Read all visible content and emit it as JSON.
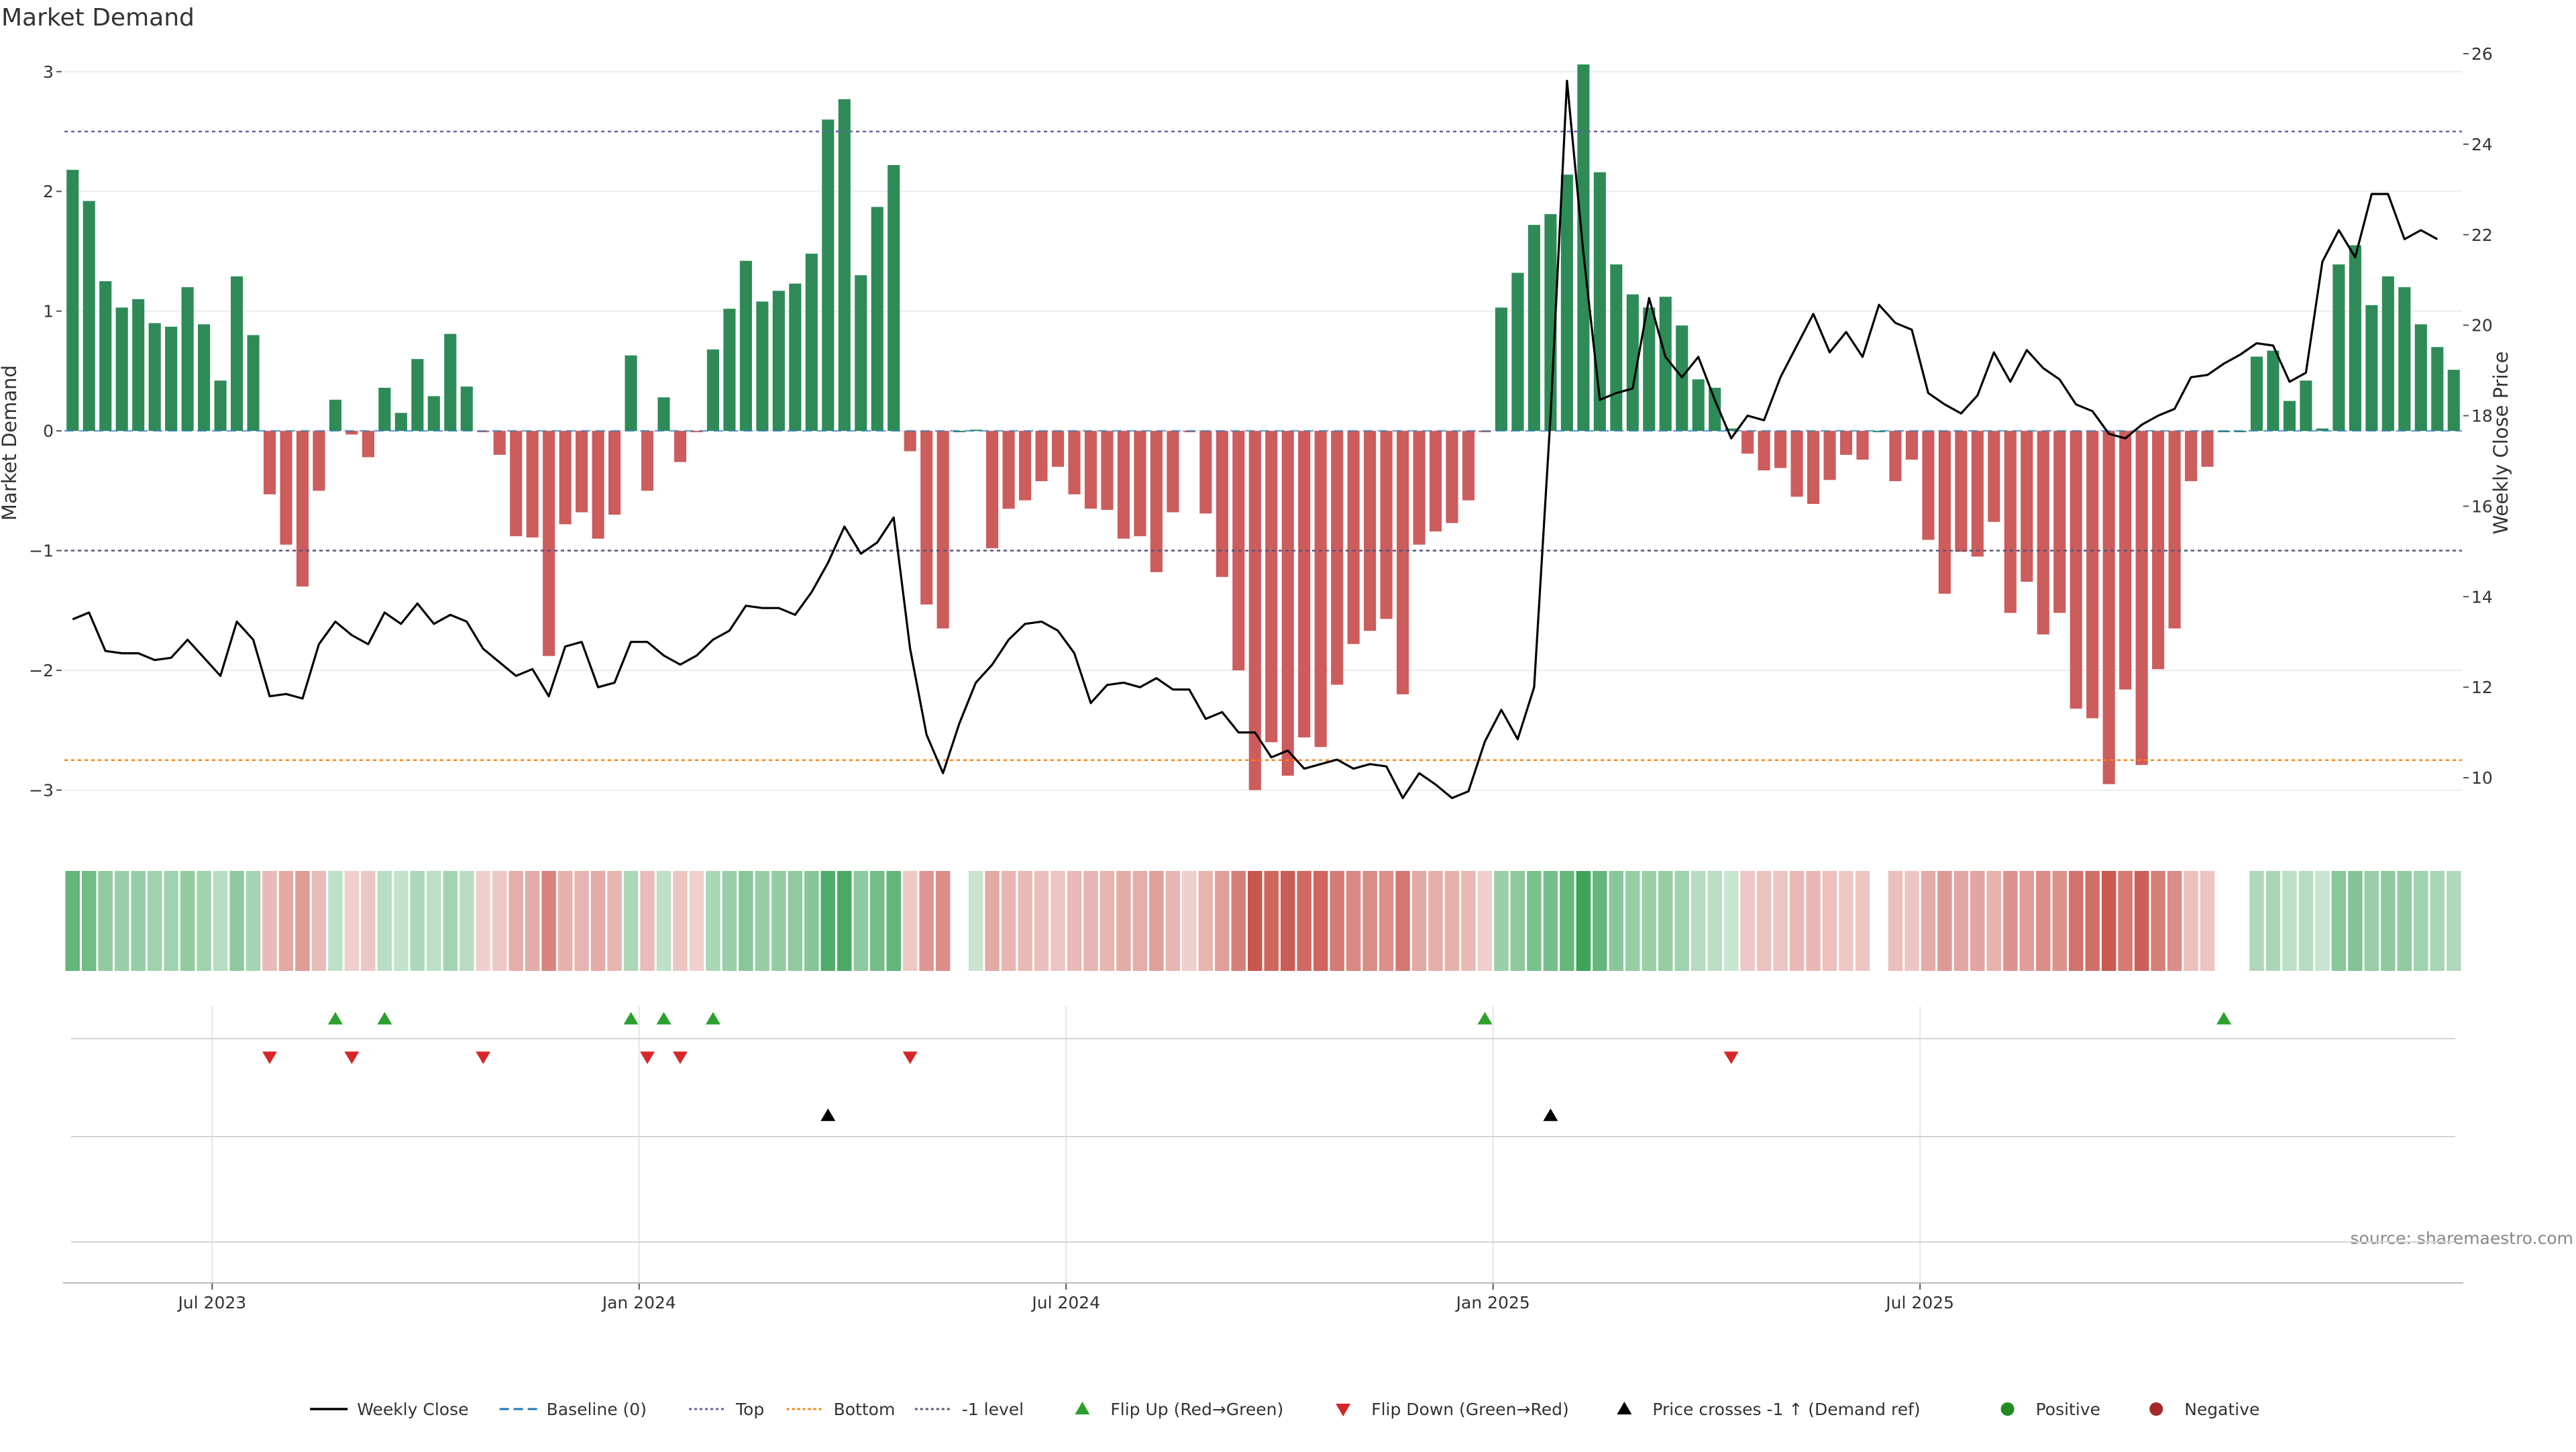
{
  "title": "Market Demand",
  "source": "source: sharemaestro.com",
  "left_axis_label": "Market Demand",
  "right_axis_label": "Weekly Close Price",
  "date_ticks": [
    "Jul 2023",
    "Jan 2024",
    "Jul 2024",
    "Jan 2025",
    "Jul 2025"
  ],
  "legend": [
    {
      "label": "Weekly Close",
      "kind": "line",
      "color": "#000000"
    },
    {
      "label": "Baseline (0)",
      "kind": "dash",
      "color": "#1f77b4"
    },
    {
      "label": "Top",
      "kind": "dot",
      "color": "#6b5fa8"
    },
    {
      "label": "Bottom",
      "kind": "dot",
      "color": "#ff7f0e"
    },
    {
      "label": "-1 level",
      "kind": "dot",
      "color": "#555577"
    },
    {
      "label": "Flip Up (Red→Green)",
      "kind": "tri-up",
      "color": "#2ca02c"
    },
    {
      "label": "Flip Down (Green→Red)",
      "kind": "tri-down",
      "color": "#d62728"
    },
    {
      "label": "Price crosses -1 ↑ (Demand ref)",
      "kind": "tri-up",
      "color": "#000000"
    },
    {
      "label": "Positive",
      "kind": "circle",
      "color": "#228b22"
    },
    {
      "label": "Negative",
      "kind": "circle",
      "color": "#a52a2a"
    }
  ],
  "colors": {
    "positive_bar": "#2e8b57",
    "negative_bar": "#cd5c5c",
    "price_line": "#000000",
    "flip_up": "#2ca02c",
    "flip_down": "#d62728",
    "cross": "#000000"
  },
  "chart_data": {
    "type": "bar",
    "x_kind": "weekly",
    "x_tick_labels": [
      "Jul 2023",
      "Jan 2024",
      "Jul 2024",
      "Jan 2025",
      "Jul 2025"
    ],
    "demand": [
      2.18,
      1.92,
      1.25,
      1.03,
      1.1,
      0.9,
      0.87,
      1.2,
      0.89,
      0.42,
      1.29,
      0.8,
      -0.53,
      -0.95,
      -1.3,
      -0.5,
      0.26,
      -0.03,
      -0.22,
      0.36,
      0.15,
      0.6,
      0.29,
      0.81,
      0.37,
      -0.01,
      -0.2,
      -0.88,
      -0.89,
      -1.88,
      -0.78,
      -0.68,
      -0.9,
      -0.7,
      0.63,
      -0.5,
      0.28,
      -0.26,
      -0.01,
      0.68,
      1.02,
      1.42,
      1.08,
      1.17,
      1.23,
      1.48,
      2.6,
      2.77,
      1.3,
      1.87,
      2.22,
      -0.17,
      -1.45,
      -1.65,
      0,
      0.01,
      -0.98,
      -0.65,
      -0.58,
      -0.42,
      -0.3,
      -0.53,
      -0.65,
      -0.66,
      -0.9,
      -0.88,
      -1.18,
      -0.68,
      -0.01,
      -0.69,
      -1.22,
      -2.0,
      -3.0,
      -2.6,
      -2.88,
      -2.56,
      -2.64,
      -2.12,
      -1.78,
      -1.67,
      -1.57,
      -2.2,
      -0.95,
      -0.84,
      -0.77,
      -0.58,
      -0.01,
      1.03,
      1.32,
      1.72,
      1.81,
      2.14,
      3.06,
      2.16,
      1.39,
      1.14,
      1.03,
      1.12,
      0.88,
      0.43,
      0.36,
      0.02,
      -0.19,
      -0.33,
      -0.31,
      -0.55,
      -0.61,
      -0.41,
      -0.2,
      -0.24,
      0,
      -0.42,
      -0.24,
      -0.91,
      -1.36,
      -1.01,
      -1.05,
      -0.76,
      -1.52,
      -1.26,
      -1.7,
      -1.52,
      -2.32,
      -2.4,
      -2.95,
      -2.16,
      -2.79,
      -1.99,
      -1.65,
      -0.42,
      -0.3,
      0,
      0,
      0.62,
      0.67,
      0.25,
      0.42,
      0.02,
      1.39,
      1.55,
      1.05,
      1.29,
      1.2,
      0.89,
      0.7,
      0.51
    ],
    "price": [
      13.5,
      13.65,
      12.8,
      12.75,
      12.75,
      12.6,
      12.65,
      13.05,
      12.65,
      12.25,
      13.45,
      13.05,
      11.8,
      11.85,
      11.75,
      12.95,
      13.45,
      13.15,
      12.95,
      13.65,
      13.4,
      13.85,
      13.4,
      13.6,
      13.45,
      12.85,
      12.55,
      12.25,
      12.4,
      11.8,
      12.9,
      13.0,
      12.0,
      12.1,
      13.0,
      13.0,
      12.7,
      12.5,
      12.7,
      13.05,
      13.25,
      13.8,
      13.75,
      13.75,
      13.6,
      14.1,
      14.75,
      15.55,
      14.95,
      15.2,
      15.75,
      12.85,
      10.95,
      10.1,
      11.2,
      12.1,
      12.5,
      13.05,
      13.4,
      13.45,
      13.25,
      12.75,
      11.65,
      12.05,
      12.1,
      12.0,
      12.2,
      11.95,
      11.95,
      11.3,
      11.45,
      11.0,
      11.0,
      10.45,
      10.6,
      10.2,
      10.3,
      10.4,
      10.2,
      10.3,
      10.25,
      9.55,
      10.1,
      9.85,
      9.55,
      9.7,
      10.8,
      11.5,
      10.85,
      12.0,
      18.0,
      25.4,
      21.6,
      18.35,
      18.5,
      18.6,
      20.6,
      19.3,
      18.85,
      19.3,
      18.35,
      17.5,
      18.0,
      17.9,
      18.85,
      19.55,
      20.25,
      19.4,
      19.85,
      19.3,
      20.45,
      20.05,
      19.9,
      18.5,
      18.25,
      18.05,
      18.45,
      19.4,
      18.75,
      19.45,
      19.05,
      18.8,
      18.25,
      18.1,
      17.6,
      17.5,
      17.8,
      18.0,
      18.15,
      18.85,
      18.9,
      19.15,
      19.35,
      19.6,
      19.55,
      18.75,
      18.95,
      21.4,
      22.1,
      21.5,
      22.9,
      22.9,
      21.9,
      22.1,
      21.9
    ],
    "flip_up_weeks": [
      16,
      19,
      34,
      36,
      39,
      86,
      131
    ],
    "flip_down_weeks": [
      12,
      17,
      25,
      35,
      37,
      51,
      101
    ],
    "price_cross_weeks": [
      46,
      90
    ],
    "left_axis": {
      "label": "Market Demand",
      "range": [
        -3.35,
        3.15
      ],
      "ticks": [
        -3,
        -2,
        -1,
        0,
        1,
        2,
        3
      ]
    },
    "right_axis": {
      "label": "Weekly Close Price",
      "range": [
        8.8,
        26
      ],
      "ticks": [
        10,
        12,
        14,
        16,
        18,
        20,
        22,
        24,
        26
      ]
    },
    "reference_lines": {
      "top": 2.5,
      "minus_one": -1,
      "bottom": -2.75,
      "baseline": 0
    },
    "grid": true,
    "legend_position": "bottom"
  }
}
